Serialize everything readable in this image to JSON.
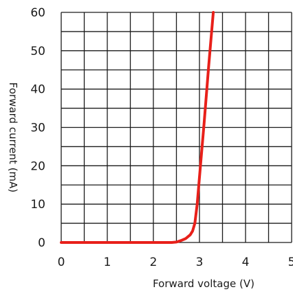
{
  "chart_data": {
    "type": "line",
    "title": "",
    "xlabel": "Forward voltage (V)",
    "ylabel": "Forward current (mA)",
    "xlim": [
      0,
      5
    ],
    "ylim": [
      0,
      60
    ],
    "x_ticks": [
      "0",
      "1",
      "2",
      "3",
      "4",
      "5"
    ],
    "y_ticks": [
      "0",
      "10",
      "20",
      "30",
      "40",
      "50",
      "60"
    ],
    "grid": true,
    "grid_step_x": 0.5,
    "grid_step_y": 5,
    "legend": "none",
    "series": [
      {
        "color": "#e8201a",
        "x": [
          0,
          2.4,
          2.5,
          2.6,
          2.7,
          2.8,
          2.85,
          2.9,
          2.95,
          3.0,
          3.1,
          3.2,
          3.3
        ],
        "y": [
          0,
          0,
          0.1,
          0.5,
          1.0,
          2.0,
          3.0,
          5.0,
          10,
          17,
          31,
          46,
          60
        ]
      }
    ]
  }
}
